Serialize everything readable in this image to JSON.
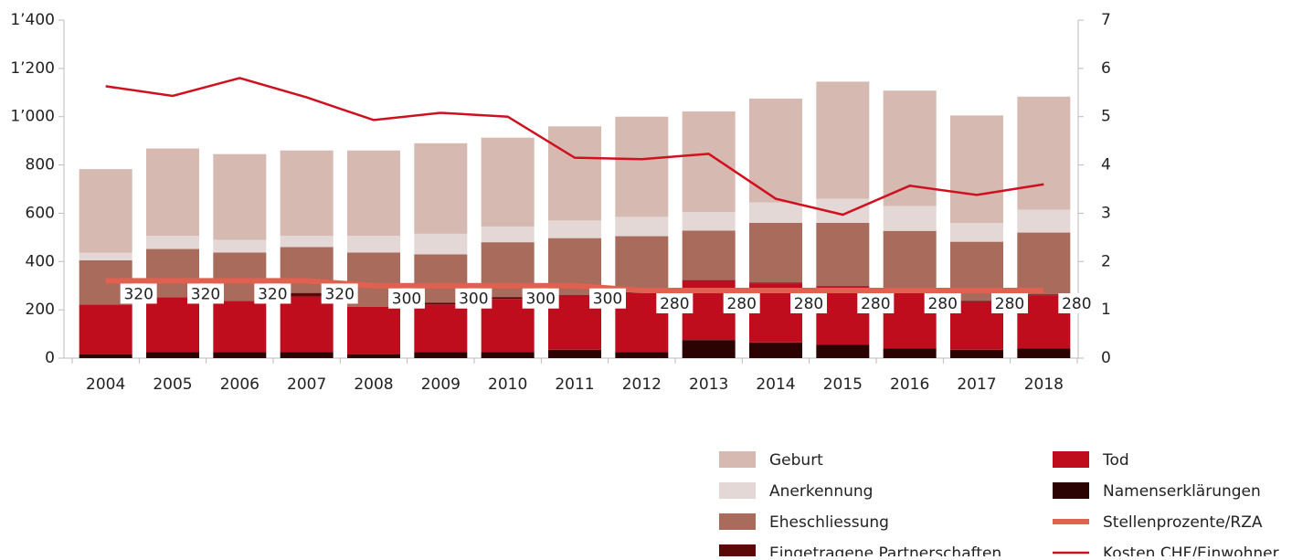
{
  "chart_data": {
    "type": "bar",
    "stacked": true,
    "categories": [
      "2004",
      "2005",
      "2006",
      "2007",
      "2008",
      "2009",
      "2010",
      "2011",
      "2012",
      "2013",
      "2014",
      "2015",
      "2016",
      "2017",
      "2018"
    ],
    "series": [
      {
        "name": "Namenserklärungen",
        "color": "#2b0303",
        "values": [
          15,
          25,
          25,
          25,
          15,
          25,
          25,
          35,
          25,
          75,
          65,
          55,
          40,
          35,
          40
        ]
      },
      {
        "name": "Tod",
        "color": "#c00d1e",
        "values": [
          207,
          227,
          212,
          230,
          197,
          197,
          220,
          223,
          245,
          245,
          245,
          240,
          230,
          197,
          220
        ]
      },
      {
        "name": "Eingetragene Partnerschaften",
        "color": "#5c0808",
        "values": [
          0,
          0,
          0,
          15,
          0,
          8,
          8,
          3,
          3,
          3,
          3,
          3,
          3,
          5,
          3
        ]
      },
      {
        "name": "Eheschliessung",
        "color": "#a96b5b",
        "values": [
          183,
          200,
          200,
          190,
          225,
          200,
          227,
          236,
          232,
          205,
          247,
          262,
          254,
          245,
          257
        ]
      },
      {
        "name": "Anerkennung",
        "color": "#e4d8d6",
        "values": [
          32,
          55,
          53,
          47,
          70,
          85,
          65,
          73,
          80,
          77,
          85,
          100,
          103,
          78,
          95
        ]
      },
      {
        "name": "Geburt",
        "color": "#d6b9b1",
        "values": [
          346,
          361,
          355,
          353,
          353,
          375,
          368,
          390,
          415,
          417,
          430,
          485,
          478,
          445,
          468
        ]
      },
      {
        "name": "Stellenprozente/RZA",
        "type": "line",
        "color": "#e0614f",
        "values": [
          320,
          320,
          320,
          320,
          300,
          300,
          300,
          300,
          280,
          280,
          280,
          280,
          280,
          280,
          280
        ],
        "data_labels": true
      },
      {
        "name": "Kosten CHF/Einwohner",
        "type": "line",
        "axis": "y2",
        "color": "#d0101f",
        "values": [
          5.63,
          5.43,
          5.8,
          5.4,
          4.93,
          5.08,
          5.0,
          4.15,
          4.12,
          4.23,
          3.3,
          2.97,
          3.57,
          3.38,
          3.6
        ]
      }
    ],
    "legend_order": [
      5,
      4,
      3,
      2,
      1,
      0,
      6,
      7
    ],
    "ylim": [
      0,
      1400
    ],
    "yticks": [
      0,
      200,
      400,
      600,
      800,
      {
        "value": 1000,
        "label": "1’000"
      },
      {
        "value": 1200,
        "label": "1’200"
      },
      {
        "value": 1400,
        "label": "1’400"
      }
    ],
    "y2lim": [
      0,
      7
    ],
    "y2ticks": [
      0,
      1,
      2,
      3,
      4,
      5,
      6,
      7
    ]
  }
}
